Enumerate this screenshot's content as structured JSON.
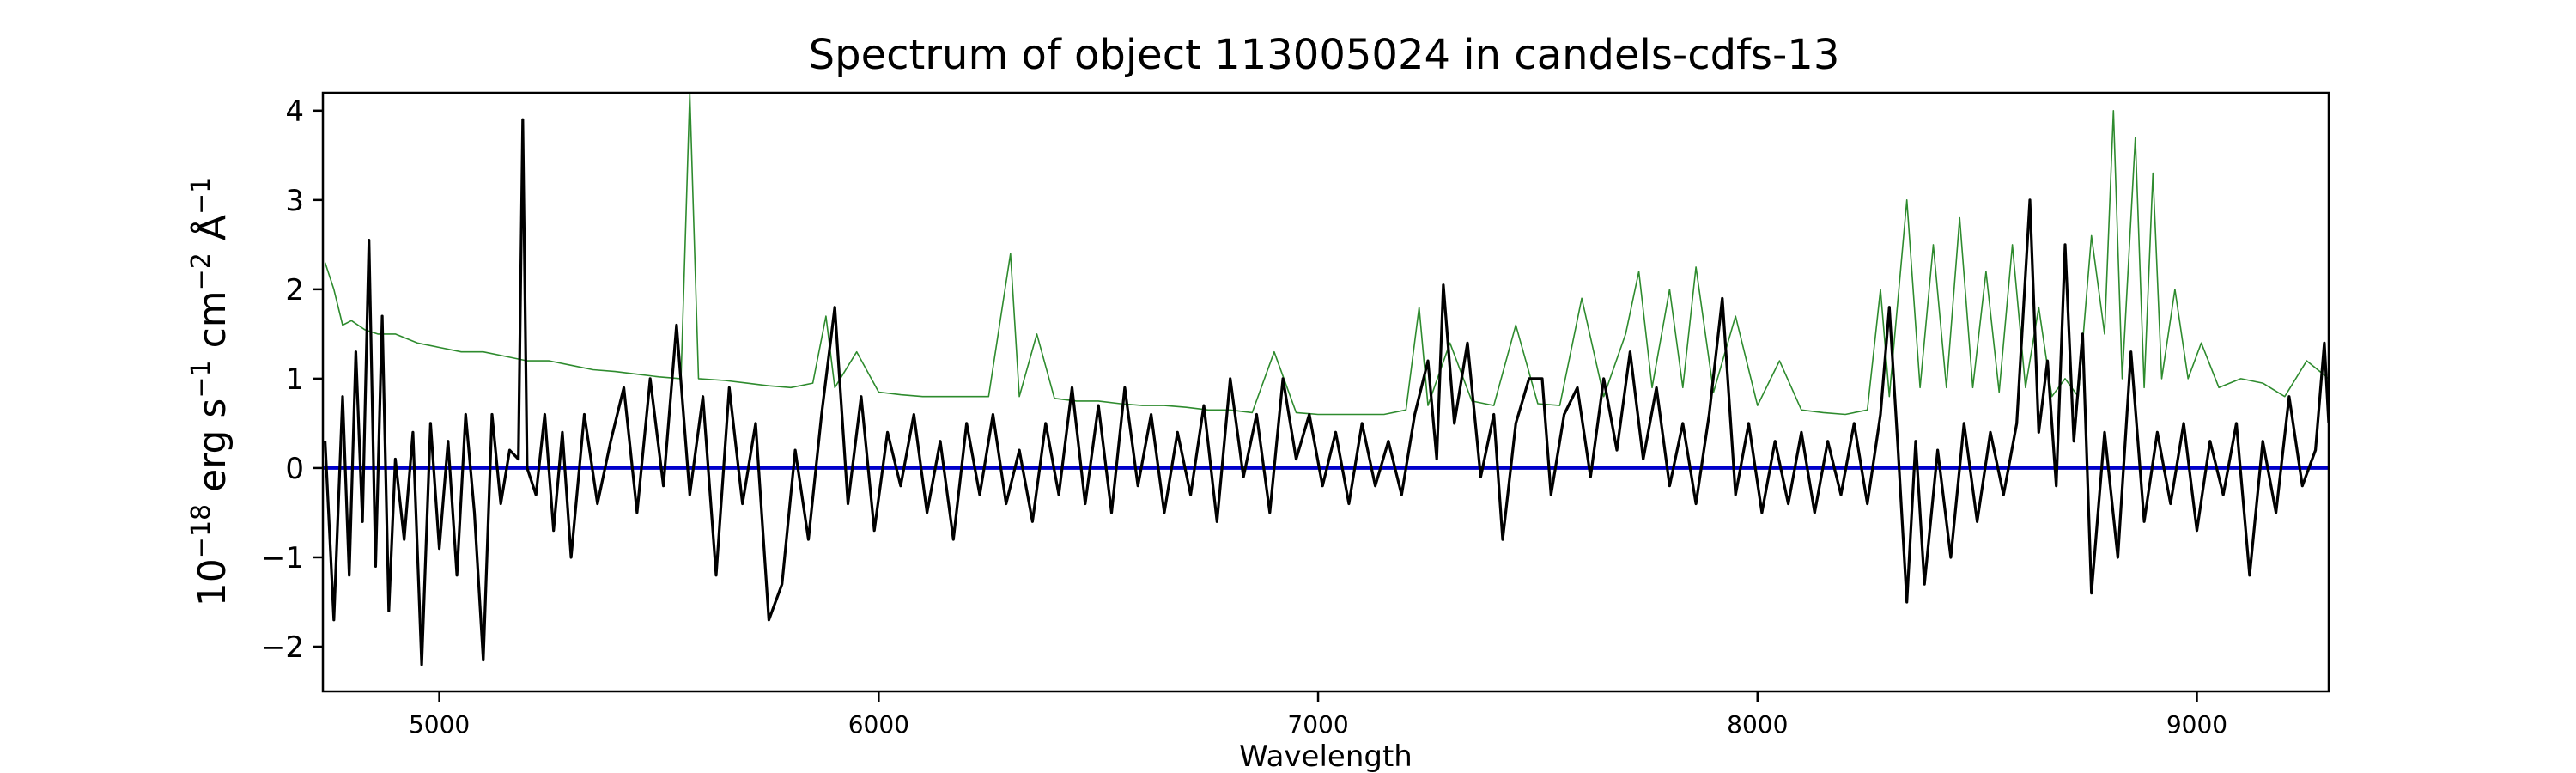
{
  "chart_data": {
    "type": "line",
    "title": "Spectrum of object 113005024 in candels-cdfs-13",
    "xlabel": "Wavelength",
    "ylabel_base": "10",
    "ylabel_exp": "−18",
    "ylabel_unit_1": " erg s",
    "ylabel_exp_1": "−1",
    "ylabel_unit_2": " cm",
    "ylabel_exp_2": "−2",
    "ylabel_unit_3": " Å",
    "ylabel_exp_3": "−1",
    "xlim": [
      4735,
      9300
    ],
    "ylim": [
      -2.5,
      4.2
    ],
    "x_ticks": [
      5000,
      6000,
      7000,
      8000,
      9000
    ],
    "y_ticks": [
      -2,
      -1,
      0,
      1,
      2,
      3,
      4
    ],
    "x_tick_labels": [
      "5000",
      "6000",
      "7000",
      "8000",
      "9000"
    ],
    "y_tick_labels": [
      "−2",
      "−1",
      "0",
      "1",
      "2",
      "3",
      "4"
    ],
    "grid": false,
    "colors": {
      "flux": "#000000",
      "error": "#2e8b2e",
      "zero": "#0000cc"
    },
    "series": [
      {
        "key": "flux",
        "points": [
          [
            4740,
            0.3
          ],
          [
            4760,
            -1.7
          ],
          [
            4780,
            0.8
          ],
          [
            4795,
            -1.2
          ],
          [
            4810,
            1.3
          ],
          [
            4825,
            -0.6
          ],
          [
            4840,
            2.55
          ],
          [
            4855,
            -1.1
          ],
          [
            4870,
            1.7
          ],
          [
            4885,
            -1.6
          ],
          [
            4900,
            0.1
          ],
          [
            4920,
            -0.8
          ],
          [
            4940,
            0.4
          ],
          [
            4960,
            -2.2
          ],
          [
            4980,
            0.5
          ],
          [
            5000,
            -0.9
          ],
          [
            5020,
            0.3
          ],
          [
            5040,
            -1.2
          ],
          [
            5060,
            0.6
          ],
          [
            5080,
            -0.5
          ],
          [
            5100,
            -2.15
          ],
          [
            5120,
            0.6
          ],
          [
            5140,
            -0.4
          ],
          [
            5160,
            0.2
          ],
          [
            5180,
            0.1
          ],
          [
            5190,
            3.9
          ],
          [
            5200,
            0.0
          ],
          [
            5220,
            -0.3
          ],
          [
            5240,
            0.6
          ],
          [
            5260,
            -0.7
          ],
          [
            5280,
            0.4
          ],
          [
            5300,
            -1.0
          ],
          [
            5330,
            0.6
          ],
          [
            5360,
            -0.4
          ],
          [
            5390,
            0.3
          ],
          [
            5420,
            0.9
          ],
          [
            5450,
            -0.5
          ],
          [
            5480,
            1.0
          ],
          [
            5510,
            -0.2
          ],
          [
            5540,
            1.6
          ],
          [
            5570,
            -0.3
          ],
          [
            5600,
            0.8
          ],
          [
            5630,
            -1.2
          ],
          [
            5660,
            0.9
          ],
          [
            5690,
            -0.4
          ],
          [
            5720,
            0.5
          ],
          [
            5750,
            -1.7
          ],
          [
            5780,
            -1.3
          ],
          [
            5810,
            0.2
          ],
          [
            5840,
            -0.8
          ],
          [
            5870,
            0.6
          ],
          [
            5900,
            1.8
          ],
          [
            5930,
            -0.4
          ],
          [
            5960,
            0.8
          ],
          [
            5990,
            -0.7
          ],
          [
            6020,
            0.4
          ],
          [
            6050,
            -0.2
          ],
          [
            6080,
            0.6
          ],
          [
            6110,
            -0.5
          ],
          [
            6140,
            0.3
          ],
          [
            6170,
            -0.8
          ],
          [
            6200,
            0.5
          ],
          [
            6230,
            -0.3
          ],
          [
            6260,
            0.6
          ],
          [
            6290,
            -0.4
          ],
          [
            6320,
            0.2
          ],
          [
            6350,
            -0.6
          ],
          [
            6380,
            0.5
          ],
          [
            6410,
            -0.3
          ],
          [
            6440,
            0.9
          ],
          [
            6470,
            -0.4
          ],
          [
            6500,
            0.7
          ],
          [
            6530,
            -0.5
          ],
          [
            6560,
            0.9
          ],
          [
            6590,
            -0.2
          ],
          [
            6620,
            0.6
          ],
          [
            6650,
            -0.5
          ],
          [
            6680,
            0.4
          ],
          [
            6710,
            -0.3
          ],
          [
            6740,
            0.7
          ],
          [
            6770,
            -0.6
          ],
          [
            6800,
            1.0
          ],
          [
            6830,
            -0.1
          ],
          [
            6860,
            0.6
          ],
          [
            6890,
            -0.5
          ],
          [
            6920,
            1.0
          ],
          [
            6950,
            0.1
          ],
          [
            6980,
            0.6
          ],
          [
            7010,
            -0.2
          ],
          [
            7040,
            0.4
          ],
          [
            7070,
            -0.4
          ],
          [
            7100,
            0.5
          ],
          [
            7130,
            -0.2
          ],
          [
            7160,
            0.3
          ],
          [
            7190,
            -0.3
          ],
          [
            7220,
            0.6
          ],
          [
            7250,
            1.2
          ],
          [
            7270,
            0.1
          ],
          [
            7285,
            2.05
          ],
          [
            7310,
            0.5
          ],
          [
            7340,
            1.4
          ],
          [
            7370,
            -0.1
          ],
          [
            7400,
            0.6
          ],
          [
            7420,
            -0.8
          ],
          [
            7450,
            0.5
          ],
          [
            7480,
            1.0
          ],
          [
            7510,
            1.0
          ],
          [
            7530,
            -0.3
          ],
          [
            7560,
            0.6
          ],
          [
            7590,
            0.9
          ],
          [
            7620,
            -0.1
          ],
          [
            7650,
            1.0
          ],
          [
            7680,
            0.2
          ],
          [
            7710,
            1.3
          ],
          [
            7740,
            0.1
          ],
          [
            7770,
            0.9
          ],
          [
            7800,
            -0.2
          ],
          [
            7830,
            0.5
          ],
          [
            7860,
            -0.4
          ],
          [
            7890,
            0.6
          ],
          [
            7920,
            1.9
          ],
          [
            7950,
            -0.3
          ],
          [
            7980,
            0.5
          ],
          [
            8010,
            -0.5
          ],
          [
            8040,
            0.3
          ],
          [
            8070,
            -0.4
          ],
          [
            8100,
            0.4
          ],
          [
            8130,
            -0.5
          ],
          [
            8160,
            0.3
          ],
          [
            8190,
            -0.3
          ],
          [
            8220,
            0.5
          ],
          [
            8250,
            -0.4
          ],
          [
            8280,
            0.6
          ],
          [
            8300,
            1.8
          ],
          [
            8320,
            0.2
          ],
          [
            8340,
            -1.5
          ],
          [
            8360,
            0.3
          ],
          [
            8380,
            -1.3
          ],
          [
            8410,
            0.2
          ],
          [
            8440,
            -1.0
          ],
          [
            8470,
            0.5
          ],
          [
            8500,
            -0.6
          ],
          [
            8530,
            0.4
          ],
          [
            8560,
            -0.3
          ],
          [
            8590,
            0.5
          ],
          [
            8620,
            3.0
          ],
          [
            8640,
            0.4
          ],
          [
            8660,
            1.2
          ],
          [
            8680,
            -0.2
          ],
          [
            8700,
            2.5
          ],
          [
            8720,
            0.3
          ],
          [
            8740,
            1.5
          ],
          [
            8760,
            -1.4
          ],
          [
            8790,
            0.4
          ],
          [
            8820,
            -1.0
          ],
          [
            8850,
            1.3
          ],
          [
            8880,
            -0.6
          ],
          [
            8910,
            0.4
          ],
          [
            8940,
            -0.4
          ],
          [
            8970,
            0.5
          ],
          [
            9000,
            -0.7
          ],
          [
            9030,
            0.3
          ],
          [
            9060,
            -0.3
          ],
          [
            9090,
            0.5
          ],
          [
            9120,
            -1.2
          ],
          [
            9150,
            0.3
          ],
          [
            9180,
            -0.5
          ],
          [
            9210,
            0.8
          ],
          [
            9240,
            -0.2
          ],
          [
            9270,
            0.2
          ],
          [
            9290,
            1.4
          ],
          [
            9300,
            0.5
          ]
        ]
      },
      {
        "key": "error",
        "points": [
          [
            4740,
            2.3
          ],
          [
            4760,
            2.0
          ],
          [
            4780,
            1.6
          ],
          [
            4800,
            1.65
          ],
          [
            4830,
            1.55
          ],
          [
            4860,
            1.5
          ],
          [
            4900,
            1.5
          ],
          [
            4950,
            1.4
          ],
          [
            5000,
            1.35
          ],
          [
            5050,
            1.3
          ],
          [
            5100,
            1.3
          ],
          [
            5150,
            1.25
          ],
          [
            5200,
            1.2
          ],
          [
            5250,
            1.2
          ],
          [
            5300,
            1.15
          ],
          [
            5350,
            1.1
          ],
          [
            5400,
            1.08
          ],
          [
            5450,
            1.05
          ],
          [
            5500,
            1.02
          ],
          [
            5550,
            1.0
          ],
          [
            5570,
            4.2
          ],
          [
            5590,
            1.0
          ],
          [
            5650,
            0.98
          ],
          [
            5700,
            0.95
          ],
          [
            5750,
            0.92
          ],
          [
            5800,
            0.9
          ],
          [
            5850,
            0.95
          ],
          [
            5880,
            1.7
          ],
          [
            5900,
            0.9
          ],
          [
            5950,
            1.3
          ],
          [
            6000,
            0.85
          ],
          [
            6050,
            0.82
          ],
          [
            6100,
            0.8
          ],
          [
            6150,
            0.8
          ],
          [
            6200,
            0.8
          ],
          [
            6250,
            0.8
          ],
          [
            6300,
            2.4
          ],
          [
            6320,
            0.8
          ],
          [
            6360,
            1.5
          ],
          [
            6400,
            0.78
          ],
          [
            6450,
            0.75
          ],
          [
            6500,
            0.75
          ],
          [
            6550,
            0.72
          ],
          [
            6600,
            0.7
          ],
          [
            6650,
            0.7
          ],
          [
            6700,
            0.68
          ],
          [
            6750,
            0.65
          ],
          [
            6800,
            0.65
          ],
          [
            6850,
            0.62
          ],
          [
            6900,
            1.3
          ],
          [
            6950,
            0.62
          ],
          [
            7000,
            0.6
          ],
          [
            7050,
            0.6
          ],
          [
            7100,
            0.6
          ],
          [
            7150,
            0.6
          ],
          [
            7200,
            0.65
          ],
          [
            7230,
            1.8
          ],
          [
            7250,
            0.7
          ],
          [
            7300,
            1.4
          ],
          [
            7350,
            0.75
          ],
          [
            7400,
            0.7
          ],
          [
            7450,
            1.6
          ],
          [
            7500,
            0.72
          ],
          [
            7550,
            0.7
          ],
          [
            7600,
            1.9
          ],
          [
            7650,
            0.8
          ],
          [
            7700,
            1.5
          ],
          [
            7730,
            2.2
          ],
          [
            7760,
            0.9
          ],
          [
            7800,
            2.0
          ],
          [
            7830,
            0.9
          ],
          [
            7860,
            2.25
          ],
          [
            7900,
            0.85
          ],
          [
            7950,
            1.7
          ],
          [
            8000,
            0.7
          ],
          [
            8050,
            1.2
          ],
          [
            8100,
            0.65
          ],
          [
            8150,
            0.62
          ],
          [
            8200,
            0.6
          ],
          [
            8250,
            0.65
          ],
          [
            8280,
            2.0
          ],
          [
            8300,
            0.8
          ],
          [
            8340,
            3.0
          ],
          [
            8370,
            0.9
          ],
          [
            8400,
            2.5
          ],
          [
            8430,
            0.9
          ],
          [
            8460,
            2.8
          ],
          [
            8490,
            0.9
          ],
          [
            8520,
            2.2
          ],
          [
            8550,
            0.85
          ],
          [
            8580,
            2.5
          ],
          [
            8610,
            0.9
          ],
          [
            8640,
            1.8
          ],
          [
            8670,
            0.8
          ],
          [
            8700,
            1.0
          ],
          [
            8730,
            0.8
          ],
          [
            8760,
            2.6
          ],
          [
            8790,
            1.5
          ],
          [
            8810,
            4.0
          ],
          [
            8830,
            1.0
          ],
          [
            8860,
            3.7
          ],
          [
            8880,
            0.9
          ],
          [
            8900,
            3.3
          ],
          [
            8920,
            1.0
          ],
          [
            8950,
            2.0
          ],
          [
            8980,
            1.0
          ],
          [
            9010,
            1.4
          ],
          [
            9050,
            0.9
          ],
          [
            9100,
            1.0
          ],
          [
            9150,
            0.95
          ],
          [
            9200,
            0.8
          ],
          [
            9250,
            1.2
          ],
          [
            9300,
            1.0
          ]
        ]
      },
      {
        "key": "zero",
        "points": [
          [
            4735,
            0
          ],
          [
            9300,
            0
          ]
        ]
      }
    ]
  }
}
